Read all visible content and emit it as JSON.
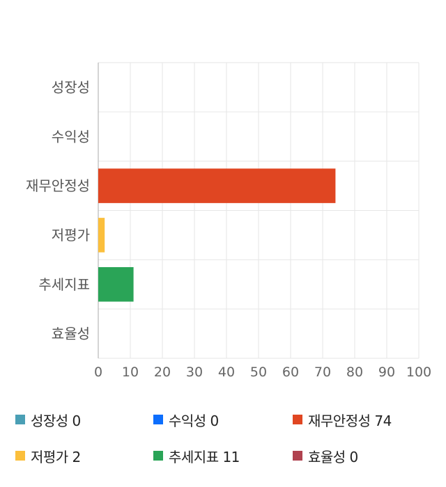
{
  "chart_data": {
    "type": "bar",
    "orientation": "horizontal",
    "categories": [
      "성장성",
      "수익성",
      "재무안정성",
      "저평가",
      "추세지표",
      "효율성"
    ],
    "values": [
      0,
      0,
      74,
      2,
      11,
      0
    ],
    "colors": [
      "#4a9fb5",
      "#0d6efd",
      "#e04622",
      "#fbbf3c",
      "#2aa457",
      "#b0424f"
    ],
    "xlim": [
      0,
      100
    ],
    "xticks": [
      0,
      10,
      20,
      30,
      40,
      50,
      60,
      70,
      80,
      90,
      100
    ],
    "grid": true,
    "title": "",
    "xlabel": "",
    "ylabel": "",
    "legend_position": "bottom"
  },
  "legend": [
    {
      "label": "성장성 0",
      "color": "#4a9fb5"
    },
    {
      "label": "수익성 0",
      "color": "#0d6efd"
    },
    {
      "label": "재무안정성 74",
      "color": "#e04622"
    },
    {
      "label": "저평가 2",
      "color": "#fbbf3c"
    },
    {
      "label": "추세지표 11",
      "color": "#2aa457"
    },
    {
      "label": "효율성 0",
      "color": "#b0424f"
    }
  ]
}
